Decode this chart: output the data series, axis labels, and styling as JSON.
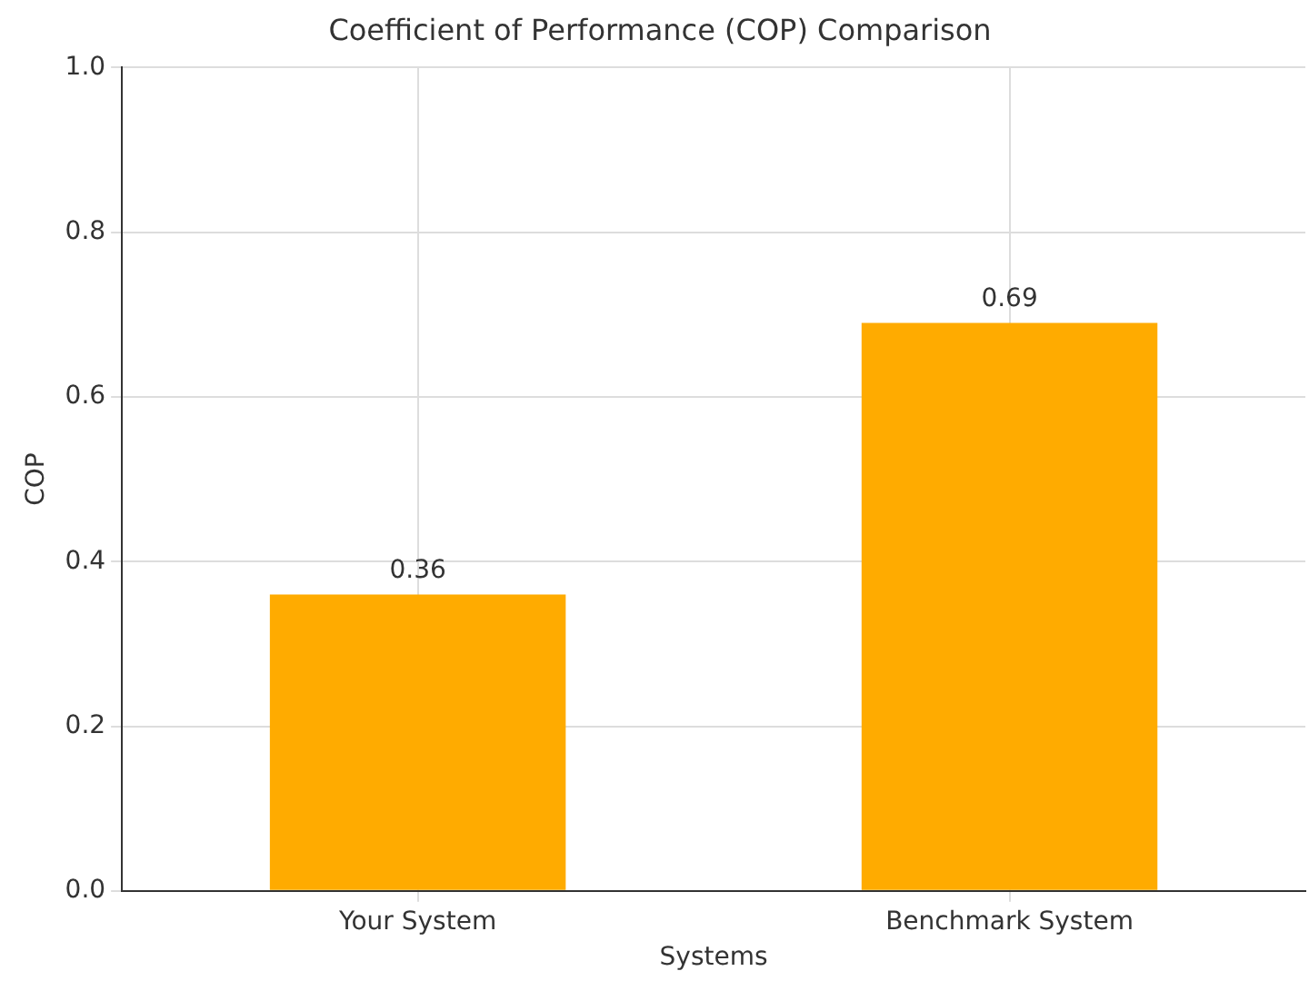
{
  "chart_data": {
    "type": "bar",
    "title": "Coefficient of Performance (COP) Comparison",
    "xlabel": "Systems",
    "ylabel": "COP",
    "categories": [
      "Your System",
      "Benchmark System"
    ],
    "values": [
      0.36,
      0.69
    ],
    "color": "#ffab00",
    "ylim": [
      0,
      1
    ],
    "yticks": [
      {
        "value": 0,
        "label": "0.0"
      },
      {
        "value": 0.2,
        "label": "0.2"
      },
      {
        "value": 0.4,
        "label": "0.4"
      },
      {
        "value": 0.6,
        "label": "0.6"
      },
      {
        "value": 0.8,
        "label": "0.8"
      },
      {
        "value": 1,
        "label": "1.0"
      }
    ],
    "grid": true,
    "data_labels": true
  }
}
